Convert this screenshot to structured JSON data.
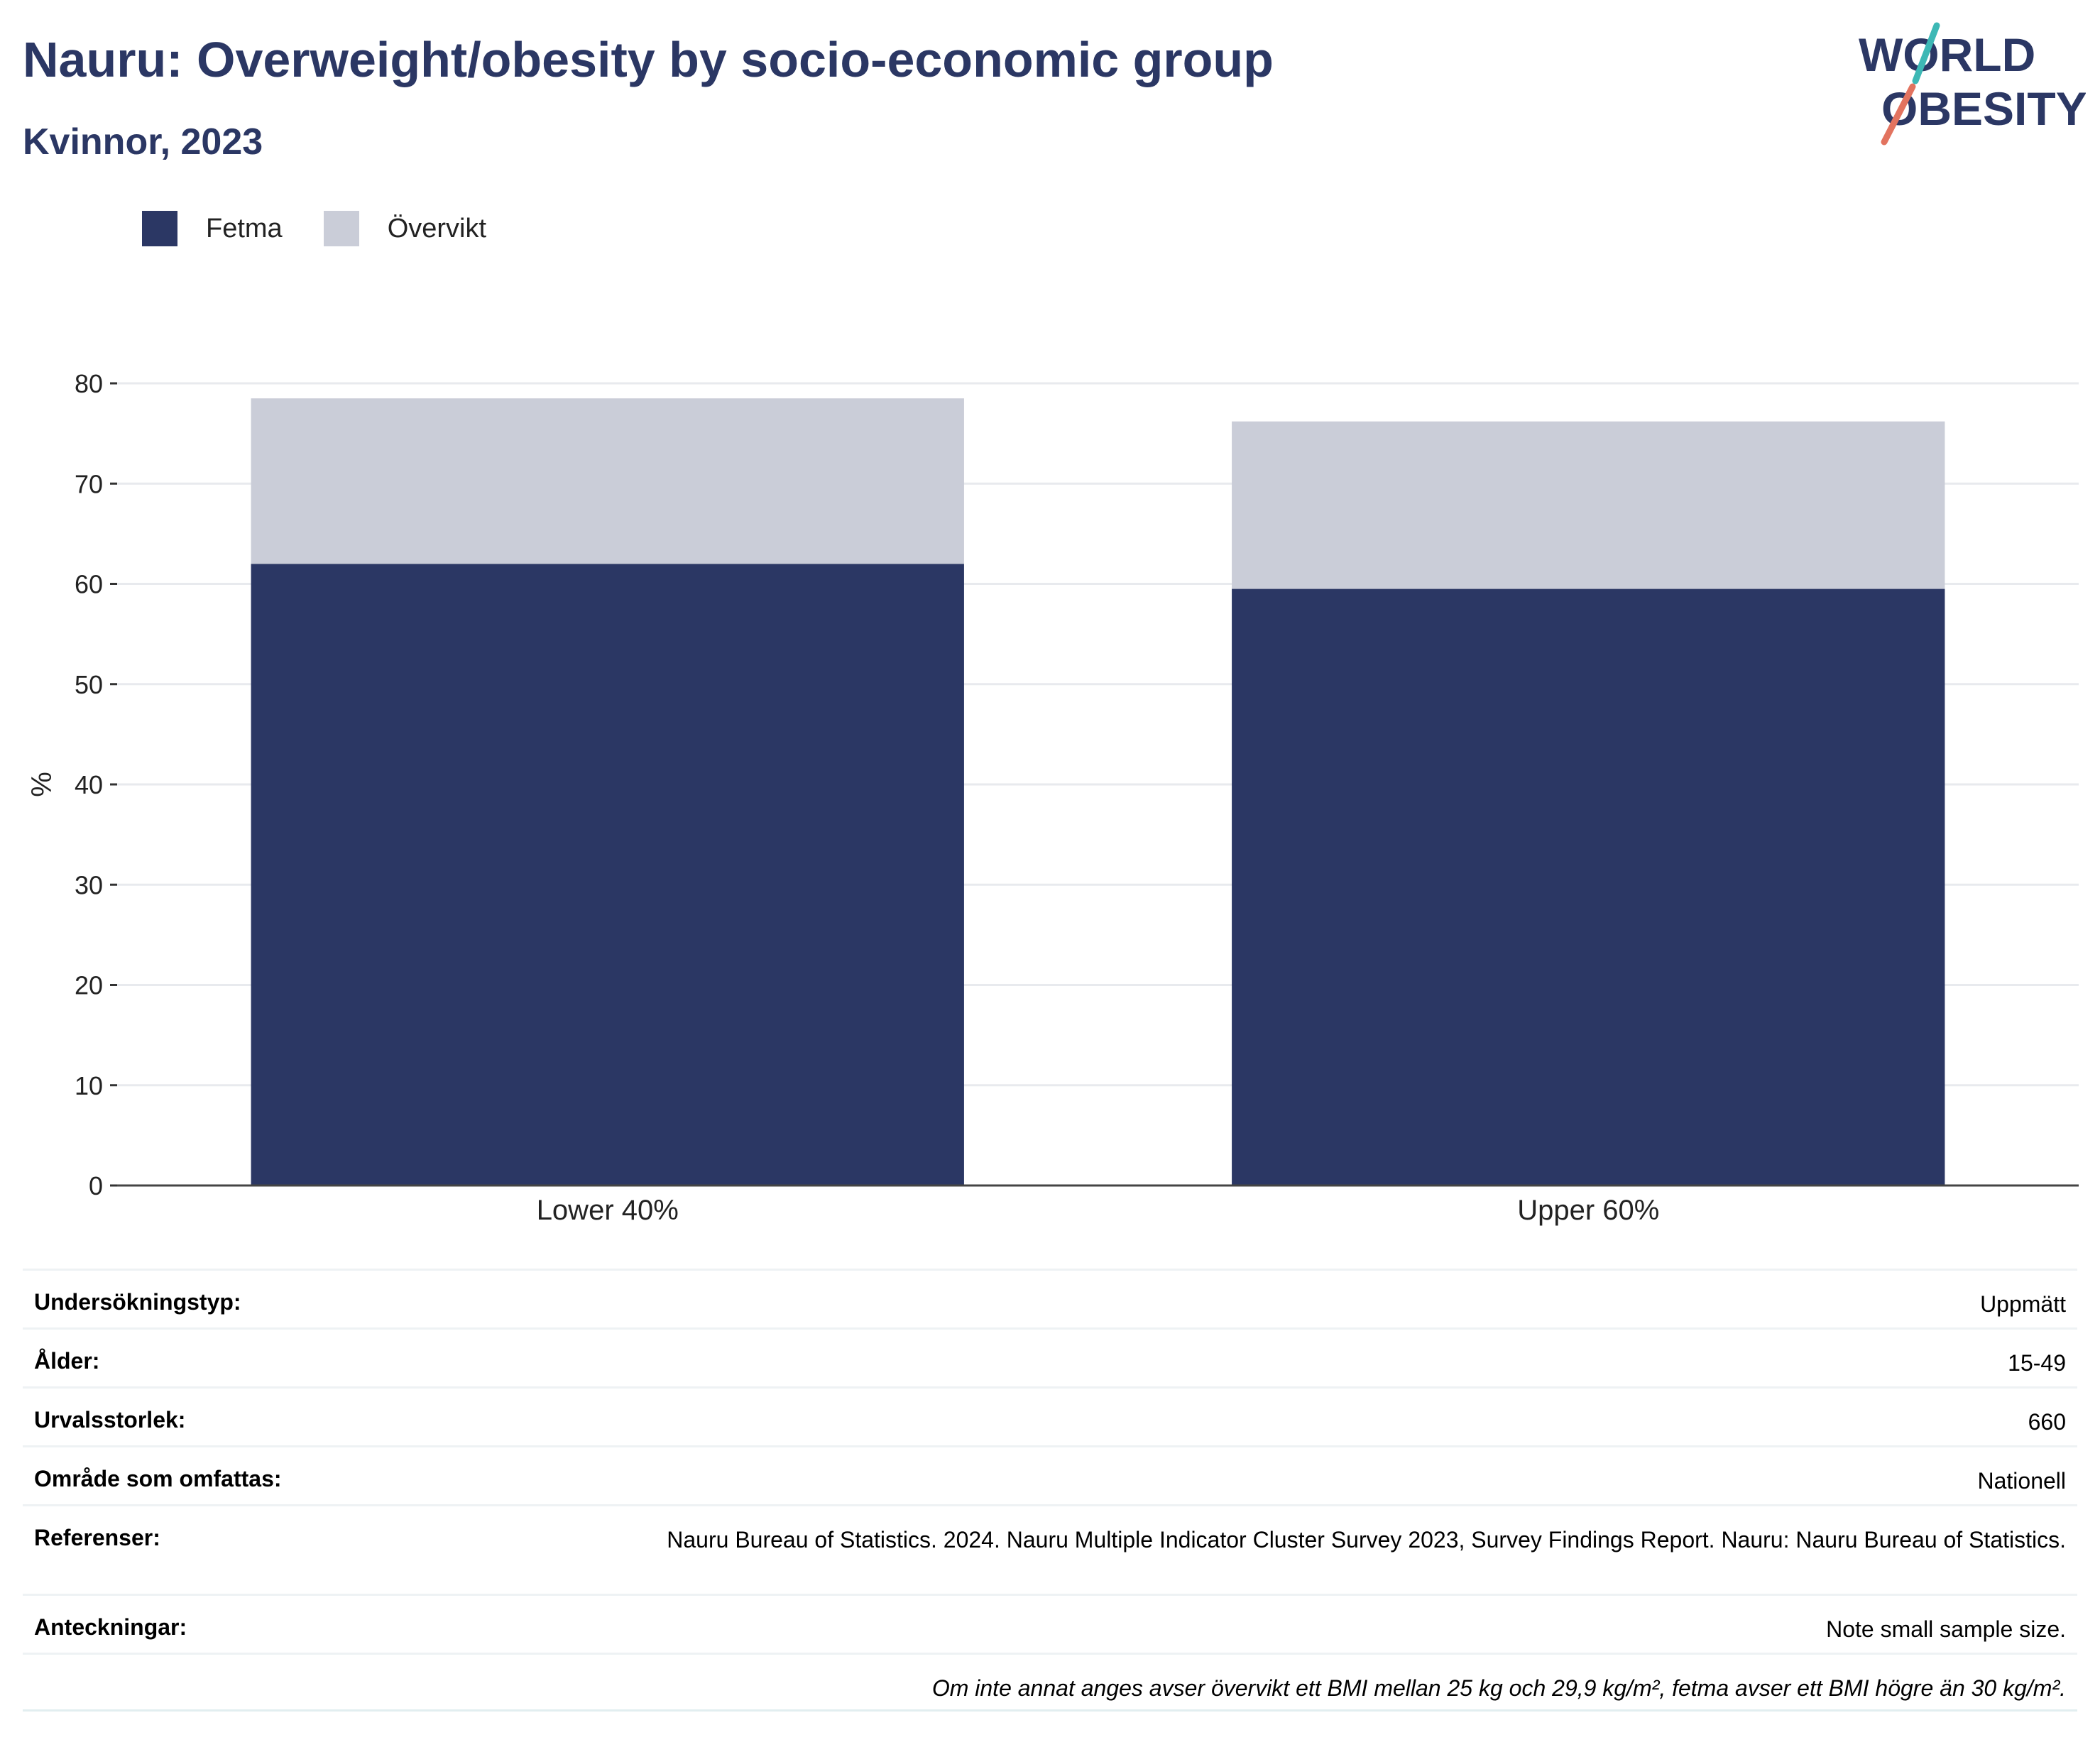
{
  "header": {
    "title": "Nauru: Overweight/obesity by socio-economic group",
    "subtitle": "Kvinnor, 2023",
    "logo_text": [
      "WORLD",
      "OBESITY"
    ]
  },
  "legend": [
    {
      "label": "Fetma",
      "color": "#2b3764"
    },
    {
      "label": "Övervikt",
      "color": "#cacdd8"
    }
  ],
  "chart_data": {
    "type": "bar",
    "stacked": true,
    "categories": [
      "Lower 40%",
      "Upper 60%"
    ],
    "series": [
      {
        "name": "Fetma",
        "values": [
          62,
          59.5
        ],
        "color": "#2b3764"
      },
      {
        "name": "Övervikt",
        "values": [
          16.5,
          16.7
        ],
        "color": "#cacdd8"
      }
    ],
    "ylabel": "%",
    "ylim": [
      0,
      80
    ],
    "yticks": [
      0,
      10,
      20,
      30,
      40,
      50,
      60,
      70,
      80
    ],
    "grid": true
  },
  "info": [
    {
      "label": "Undersökningstyp:",
      "value": "Uppmätt"
    },
    {
      "label": "Ålder:",
      "value": "15-49"
    },
    {
      "label": "Urvalsstorlek:",
      "value": "660"
    },
    {
      "label": "Område som omfattas:",
      "value": "Nationell"
    },
    {
      "label": "Referenser:",
      "value": "Nauru Bureau of Statistics. 2024. Nauru Multiple Indicator Cluster Survey 2023, Survey Findings Report. Nauru: Nauru Bureau of Statistics."
    },
    {
      "label": "Anteckningar:",
      "value": "Note small sample size."
    },
    {
      "label": "",
      "value": "Om inte annat anges avser övervikt ett BMI mellan 25 kg och 29,9 kg/m², fetma avser ett BMI högre än 30 kg/m²."
    }
  ]
}
